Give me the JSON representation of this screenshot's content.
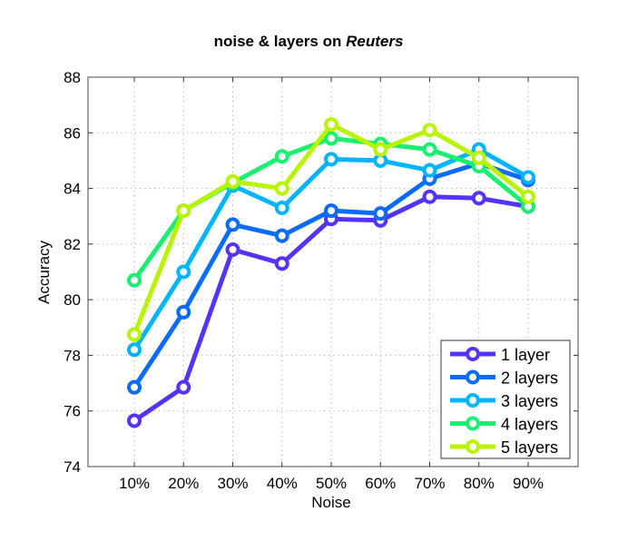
{
  "chart_data": {
    "type": "line",
    "title": "noise & layers on ",
    "title_italic": "Reuters",
    "xlabel": "Noise",
    "ylabel": "Accuracy",
    "categories": [
      "10%",
      "20%",
      "30%",
      "40%",
      "50%",
      "60%",
      "70%",
      "80%",
      "90%"
    ],
    "ylim": [
      74,
      88
    ],
    "yticks": [
      74,
      76,
      78,
      80,
      82,
      84,
      86,
      88
    ],
    "grid": true,
    "legend_position": "bottom-right",
    "series": [
      {
        "name": "1 layer",
        "color": "#5533ff",
        "values": [
          75.65,
          76.85,
          81.8,
          81.3,
          82.9,
          82.85,
          83.7,
          83.65,
          83.35
        ]
      },
      {
        "name": "2 layers",
        "color": "#0a6cff",
        "values": [
          76.85,
          79.55,
          82.7,
          82.3,
          83.2,
          83.1,
          84.35,
          84.9,
          84.3
        ]
      },
      {
        "name": "3 layers",
        "color": "#00b4ff",
        "values": [
          78.2,
          81.0,
          84.1,
          83.3,
          85.05,
          85.0,
          84.65,
          85.4,
          84.4
        ]
      },
      {
        "name": "4 layers",
        "color": "#19f070",
        "values": [
          80.7,
          83.2,
          84.2,
          85.15,
          85.8,
          85.6,
          85.4,
          84.8,
          83.35
        ]
      },
      {
        "name": "5 layers",
        "color": "#b8f400",
        "values": [
          78.75,
          83.2,
          84.25,
          84.0,
          86.3,
          85.4,
          86.1,
          85.1,
          83.7
        ]
      }
    ]
  }
}
